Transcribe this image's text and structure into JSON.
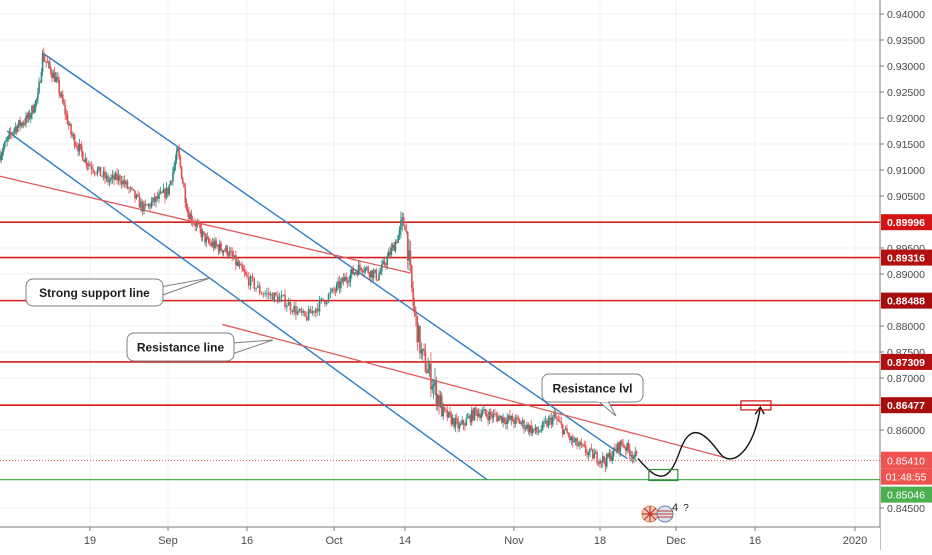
{
  "chart_data": {
    "type": "candlestick",
    "y_axis": {
      "ylim": [
        0.8436,
        0.9418
      ],
      "ticks": [
        "0.94000",
        "0.93500",
        "0.93000",
        "0.92500",
        "0.92000",
        "0.91500",
        "0.91000",
        "0.90500",
        "0.90000",
        "0.89500",
        "0.89000",
        "0.88500",
        "0.88000",
        "0.87500",
        "0.87000",
        "0.86500",
        "0.86000",
        "0.85500",
        "0.84500"
      ]
    },
    "x_axis": {
      "ticks": [
        "19",
        "Sep",
        "16",
        "Oct",
        "14",
        "Nov",
        "18",
        "Dec",
        "16",
        "2020"
      ]
    },
    "price_levels": [
      {
        "label": "0.89996",
        "value": 0.89996,
        "color": "#d21414",
        "text_color": "#ffffff"
      },
      {
        "label": "0.89316",
        "value": 0.89316,
        "color": "#b21010",
        "text_color": "#ffffff"
      },
      {
        "label": "0.88488",
        "value": 0.88488,
        "color": "#a80d0d",
        "text_color": "#ffffff"
      },
      {
        "label": "0.87309",
        "value": 0.87309,
        "color": "#b21010",
        "text_color": "#ffffff"
      },
      {
        "label": "0.86477",
        "value": 0.86477,
        "color": "#a80d0d",
        "text_color": "#ffffff"
      }
    ],
    "current_price": {
      "label": "0.85410",
      "value": 0.8541,
      "color": "#ef5350"
    },
    "countdown": {
      "label": "01:48:55",
      "color": "#ef5350"
    },
    "support_level": {
      "label": "0.85046",
      "value": 0.85046,
      "color": "#4caf50"
    },
    "annotations": [
      {
        "text": "Strong support line"
      },
      {
        "text": "Resistance line"
      },
      {
        "text": "Resistance lvl"
      }
    ],
    "event_badge": "4",
    "event_badge_extra": "?",
    "colors": {
      "channel": "#2e7bc4",
      "trendline": "#e05a5a",
      "up_candle": "#2a8a82",
      "down_candle": "#e35050",
      "projection": "#111111"
    }
  }
}
